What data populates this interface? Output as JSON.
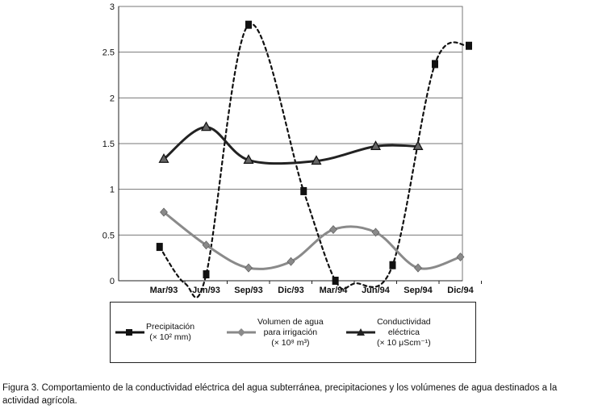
{
  "chart_data": {
    "type": "line",
    "categories": [
      "Mar/93",
      "Jun/93",
      "Sep/93",
      "Dic/93",
      "Mar/94",
      "Jun/94",
      "Sep/94",
      "Dic/94"
    ],
    "ylim": [
      0,
      3
    ],
    "yticks": [
      "0",
      "0.5",
      "1",
      "1.5",
      "2",
      "2.5",
      "3"
    ],
    "grid": true,
    "legend_position": "bottom",
    "series": [
      {
        "key": "precip",
        "name_lines": [
          "Precipitación",
          "(× 10² mm)"
        ],
        "style": "dotted",
        "marker": "square",
        "color": "#111111",
        "points": [
          [
            0.9,
            0.37
          ],
          [
            1.5,
            -0.03
          ],
          [
            2.0,
            0.07
          ],
          [
            3.0,
            2.8
          ],
          [
            4.3,
            0.98
          ],
          [
            5.05,
            0.0
          ],
          [
            5.5,
            -0.03
          ],
          [
            6.4,
            0.17
          ],
          [
            7.4,
            2.37
          ],
          [
            8.2,
            2.57
          ]
        ]
      },
      {
        "key": "volumen",
        "name_lines": [
          "Volumen de agua",
          "para irrigación",
          "(× 10⁸ m³)"
        ],
        "style": "solid",
        "marker": "diamond",
        "color": "#8a8a8a",
        "points": [
          [
            1,
            0.75
          ],
          [
            2,
            0.39
          ],
          [
            3,
            0.14
          ],
          [
            4,
            0.21
          ],
          [
            5,
            0.56
          ],
          [
            6,
            0.53
          ],
          [
            7,
            0.14
          ],
          [
            8,
            0.26
          ]
        ]
      },
      {
        "key": "conductividad",
        "name_lines": [
          "Conductividad",
          "eléctrica",
          "(× 10 μScm⁻¹)"
        ],
        "style": "solid",
        "marker": "triangle",
        "color": "#222222",
        "points": [
          [
            1,
            1.33
          ],
          [
            2,
            1.68
          ],
          [
            3,
            1.32
          ],
          [
            4.6,
            1.31
          ],
          [
            6,
            1.47
          ],
          [
            7,
            1.47
          ]
        ]
      }
    ]
  },
  "caption": "Figura 3. Comportamiento de la conductividad eléctrica del agua subterránea, precipitaciones y los volúmenes de agua destinados a la actividad agrícola."
}
